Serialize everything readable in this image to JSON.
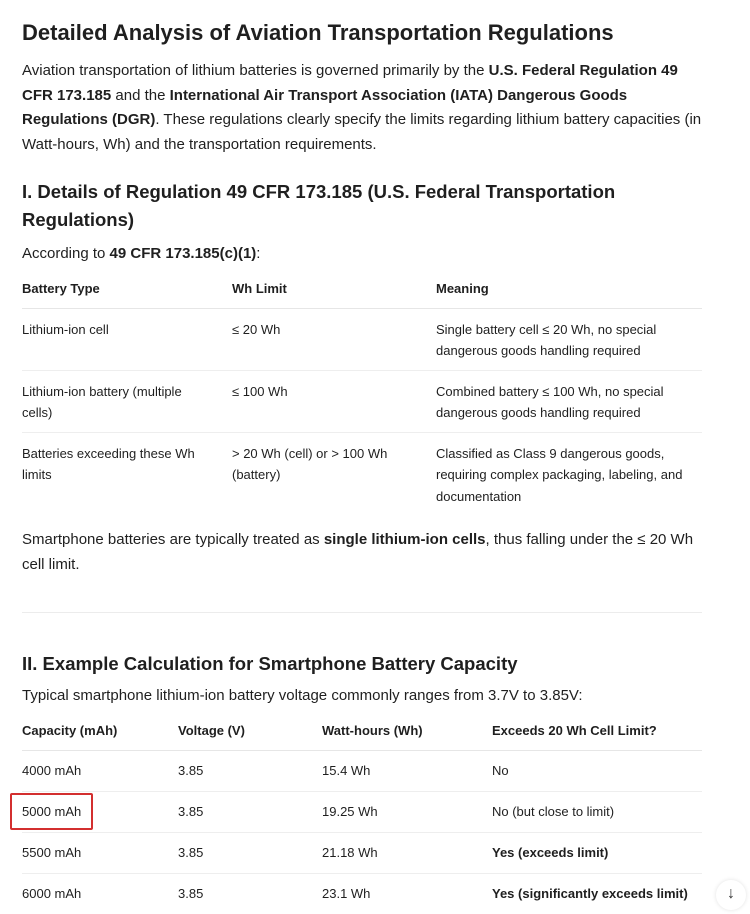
{
  "title": "Detailed Analysis of Aviation Transportation Regulations",
  "intro": {
    "t1": "Aviation transportation of lithium batteries is governed primarily by the ",
    "b1": "U.S. Federal Regulation 49 CFR 173.185",
    "t2": " and the ",
    "b2": "International Air Transport Association (IATA) Dangerous Goods Regulations (DGR)",
    "t3": ". These regulations clearly specify the limits regarding lithium battery capacities (in Watt-hours, Wh) and the transportation requirements."
  },
  "section1": {
    "heading": "I. Details of Regulation 49 CFR 173.185 (U.S. Federal Transportation Regulations)",
    "lead_text": "According to ",
    "lead_bold": "49 CFR 173.185(c)(1)",
    "lead_end": ":",
    "table": {
      "headers": [
        "Battery Type",
        "Wh Limit",
        "Meaning"
      ],
      "rows": [
        [
          "Lithium-ion cell",
          "≤ 20 Wh",
          "Single battery cell ≤ 20 Wh, no special dangerous goods handling required"
        ],
        [
          "Lithium-ion battery (multiple cells)",
          "≤ 100 Wh",
          "Combined battery ≤ 100 Wh, no special dangerous goods handling required"
        ],
        [
          "Batteries exceeding these Wh limits",
          "> 20 Wh (cell) or > 100 Wh (battery)",
          "Classified as Class 9 dangerous goods, requiring complex packaging, labeling, and documentation"
        ]
      ]
    },
    "note_t1": "Smartphone batteries are typically treated as ",
    "note_b": "single lithium-ion cells",
    "note_t2": ", thus falling under the ≤ 20 Wh cell limit."
  },
  "section2": {
    "heading": "II. Example Calculation for Smartphone Battery Capacity",
    "lead": "Typical smartphone lithium-ion battery voltage commonly ranges from 3.7V to 3.85V:",
    "table": {
      "headers": [
        "Capacity (mAh)",
        "Voltage (V)",
        "Watt-hours (Wh)",
        "Exceeds 20 Wh Cell Limit?"
      ],
      "rows": [
        [
          "4000 mAh",
          "3.85",
          "15.4 Wh",
          "No"
        ],
        [
          "5000 mAh",
          "3.85",
          "19.25 Wh",
          "No (but close to limit)"
        ],
        [
          "5500 mAh",
          "3.85",
          "21.18 Wh",
          "Yes (exceeds limit)"
        ],
        [
          "6000 mAh",
          "3.85",
          "23.1 Wh",
          "Yes (significantly exceeds limit)"
        ]
      ],
      "highlighted_cell": "5000 mAh",
      "highlight_color": "#d32f2f"
    }
  },
  "scroll_button_icon": "arrow-down-icon",
  "scroll_button_glyph": "↓"
}
